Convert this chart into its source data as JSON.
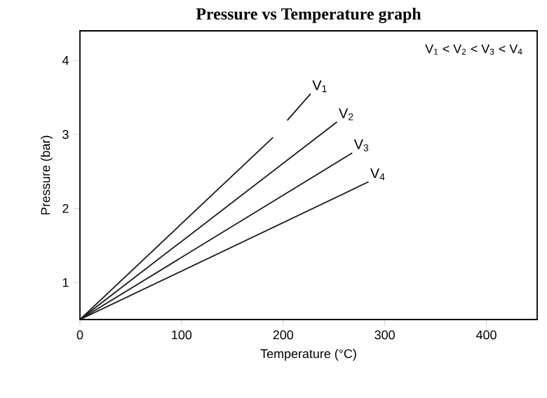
{
  "chart_data": {
    "type": "line",
    "title": "Pressure vs Temperature graph",
    "xlabel": "Temperature (°C)",
    "ylabel": "Pressure (bar)",
    "xlim": [
      0,
      450
    ],
    "ylim": [
      0.5,
      4.4
    ],
    "xticks": [
      0,
      100,
      200,
      300,
      400
    ],
    "yticks": [
      1,
      2,
      3,
      4
    ],
    "annotations": [
      "V$_{1}$ < V$_{2}$ < V$_{3}$ < V$_{4}$"
    ],
    "series": [
      {
        "name": "V$_{1}$",
        "color": "#1a1a1a",
        "x": [
          0,
          190,
          197,
          204,
          227
        ],
        "values": [
          0.5,
          2.96,
          null,
          3.19,
          3.55
        ]
      },
      {
        "name": "V$_{2}$",
        "color": "#1a1a1a",
        "x": [
          0,
          253
        ],
        "values": [
          0.5,
          3.17
        ]
      },
      {
        "name": "V$_{3}$",
        "color": "#1a1a1a",
        "x": [
          0,
          268
        ],
        "values": [
          0.5,
          2.75
        ]
      },
      {
        "name": "V$_{4}$",
        "color": "#1a1a1a",
        "x": [
          0,
          284
        ],
        "values": [
          0.5,
          2.36
        ]
      }
    ]
  }
}
